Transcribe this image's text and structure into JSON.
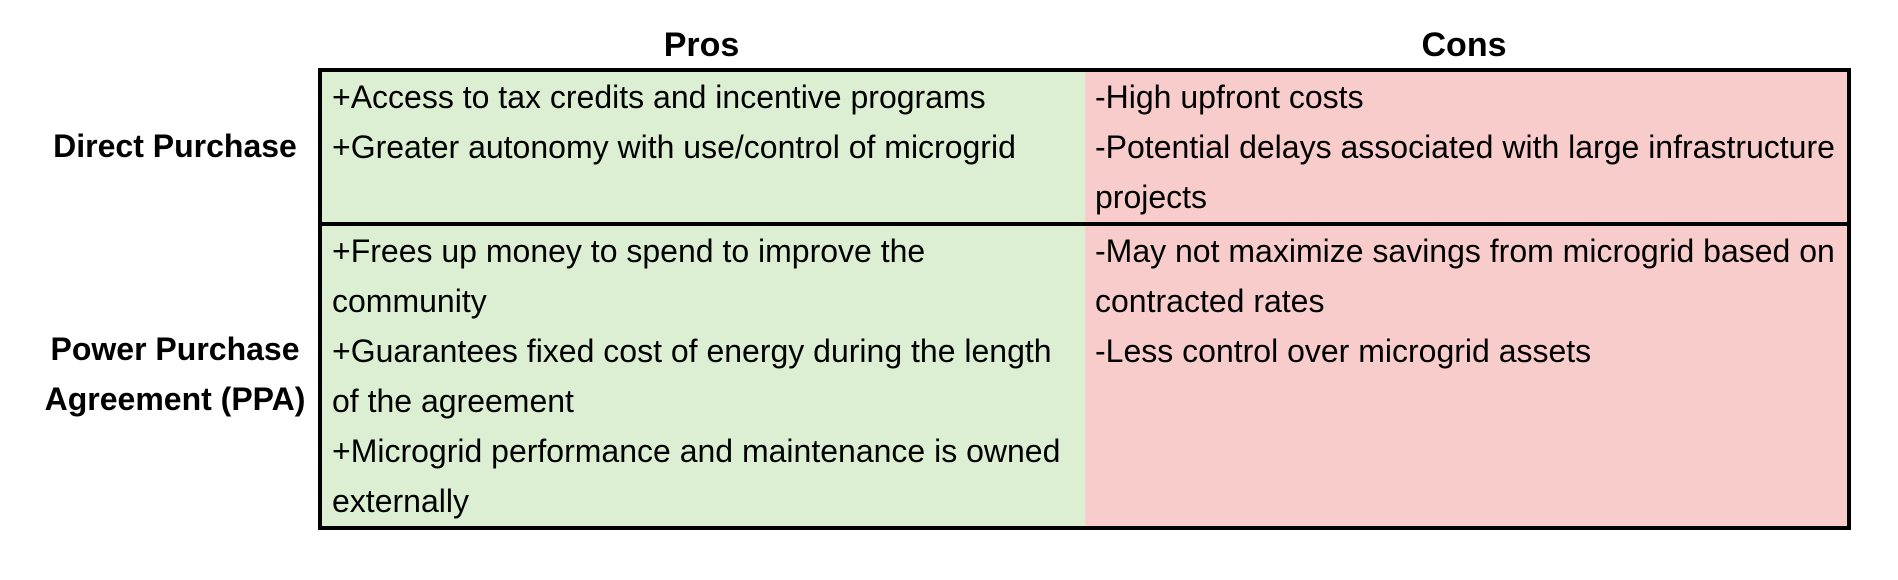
{
  "colors": {
    "pros_background": "#dcefd3",
    "cons_background": "#f7cccb",
    "border": "#000000"
  },
  "headers": {
    "pros": "Pros",
    "cons": "Cons"
  },
  "rows": [
    {
      "label": "Direct Purchase",
      "pros": [
        "+Access to tax credits and incentive programs",
        "+Greater autonomy with use/control of microgrid"
      ],
      "cons": [
        "-High upfront costs",
        "-Potential delays associated with large infrastructure projects"
      ]
    },
    {
      "label": "Power Purchase Agreement (PPA)",
      "pros": [
        "+Frees up money to spend to improve the community",
        "+Guarantees fixed cost of energy during the length of the agreement",
        "+Microgrid performance and maintenance is owned externally"
      ],
      "cons": [
        "-May not maximize savings from microgrid based on contracted rates",
        "-Less control over microgrid assets"
      ]
    }
  ]
}
